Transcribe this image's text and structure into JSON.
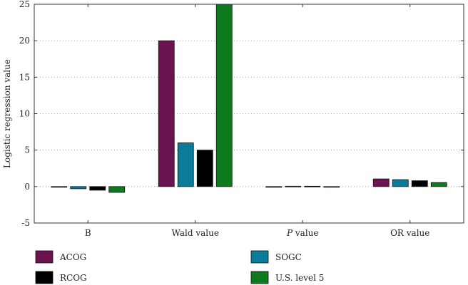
{
  "chart_data": {
    "type": "bar",
    "title": "",
    "xlabel": "",
    "ylabel": "Logistic regression value",
    "ylim": [
      -5,
      25
    ],
    "yticks": [
      -5,
      0,
      5,
      10,
      15,
      20,
      25
    ],
    "categories": [
      {
        "prefix": "",
        "italic": "",
        "suffix": "B"
      },
      {
        "prefix": "",
        "italic": "",
        "suffix": "Wald value"
      },
      {
        "prefix": "",
        "italic": "P",
        "suffix": " value"
      },
      {
        "prefix": "",
        "italic": "",
        "suffix": "OR value"
      }
    ],
    "series": [
      {
        "name": "ACOG",
        "color": "#6b1250",
        "values": [
          -0.05,
          20.0,
          -0.03,
          1.05
        ]
      },
      {
        "name": "SOGC",
        "color": "#0a7b99",
        "values": [
          -0.3,
          6.0,
          0.05,
          0.95
        ]
      },
      {
        "name": "RCOG",
        "color": "#000000",
        "values": [
          -0.5,
          5.0,
          0.05,
          0.8
        ]
      },
      {
        "name": "U.S. level 5",
        "color": "#0e7a1e",
        "values": [
          -0.8,
          25.0,
          -0.03,
          0.55
        ]
      }
    ],
    "grid": true,
    "legend": "bottom"
  }
}
